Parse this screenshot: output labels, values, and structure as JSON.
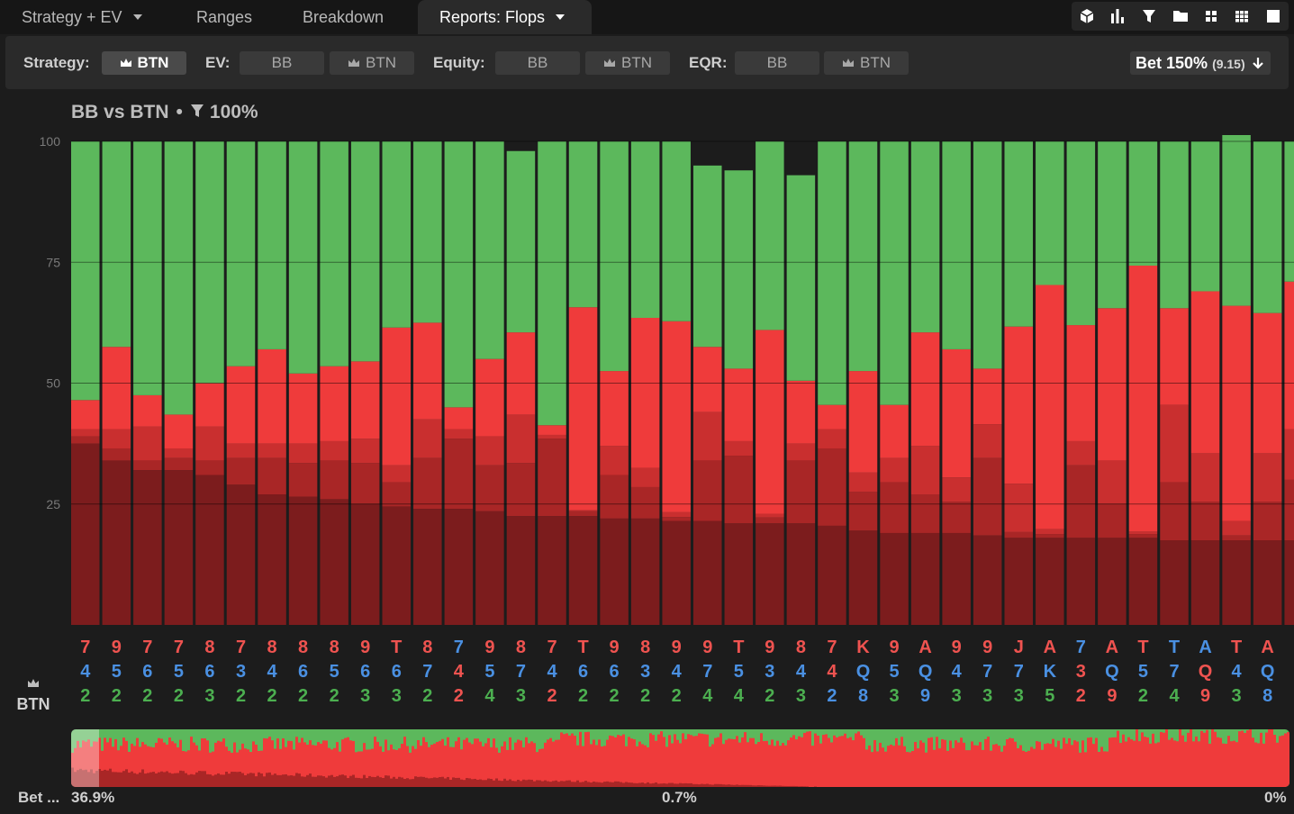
{
  "tabs": [
    {
      "label": "Strategy + EV",
      "dropdown": true,
      "active": false
    },
    {
      "label": "Ranges",
      "dropdown": false,
      "active": false
    },
    {
      "label": "Breakdown",
      "dropdown": false,
      "active": false
    },
    {
      "label": "Reports: Flops",
      "dropdown": true,
      "active": true
    }
  ],
  "tools": [
    "cube-icon",
    "bar-chart-icon",
    "filter-icon",
    "folder-icon",
    "compact-grid-icon",
    "grid-icon",
    "square-icon"
  ],
  "toolbar": {
    "strategy_label": "Strategy:",
    "strategy_btn": "BTN",
    "ev_label": "EV:",
    "ev_bb": "BB",
    "ev_btn": "BTN",
    "equity_label": "Equity:",
    "equity_bb": "BB",
    "equity_btn": "BTN",
    "eqr_label": "EQR:",
    "eqr_bb": "BB",
    "eqr_btn": "BTN",
    "bet_main": "Bet 150%",
    "bet_sub": "(9.15)"
  },
  "matchup": {
    "title": "BB vs BTN",
    "separator": "•",
    "filter": "100%"
  },
  "position_label": "BTN",
  "footer": {
    "left": "Bet ...",
    "start": "36.9%",
    "mid": "0.7%",
    "end": "0%"
  },
  "colors": {
    "check": "#5cb85c",
    "bet_small": "#ef3b3b",
    "bet_mid": "#c92f2f",
    "bet_large": "#a92626",
    "bet_max": "#7c1c1d",
    "rank_red": "#ef5350",
    "rank_blue": "#4a90e2",
    "rank_green": "#4caf50"
  },
  "chart_data": {
    "type": "bar",
    "stacked": true,
    "ylim": [
      0,
      100
    ],
    "yticks": [
      25,
      50,
      75,
      100
    ],
    "grid": true,
    "categories": [
      "742",
      "952",
      "762",
      "752",
      "863",
      "732",
      "842",
      "862",
      "852",
      "963",
      "T63",
      "872",
      "742",
      "954",
      "873",
      "742",
      "T62",
      "962",
      "832",
      "942",
      "974",
      "T54",
      "932",
      "843",
      "742",
      "KQ8",
      "953",
      "AQ9",
      "943",
      "973",
      "J73",
      "AK5",
      "732",
      "AQ9",
      "T52",
      "T74",
      "AQ9",
      "T43",
      "AQ8"
    ],
    "boards": [
      [
        "7",
        "4",
        "2"
      ],
      [
        "9",
        "5",
        "2"
      ],
      [
        "7",
        "6",
        "2"
      ],
      [
        "7",
        "5",
        "2"
      ],
      [
        "8",
        "6",
        "3"
      ],
      [
        "7",
        "3",
        "2"
      ],
      [
        "8",
        "4",
        "2"
      ],
      [
        "8",
        "6",
        "2"
      ],
      [
        "8",
        "5",
        "2"
      ],
      [
        "9",
        "6",
        "3"
      ],
      [
        "T",
        "6",
        "3"
      ],
      [
        "8",
        "7",
        "2"
      ],
      [
        "7",
        "4",
        "2"
      ],
      [
        "9",
        "5",
        "4"
      ],
      [
        "8",
        "7",
        "3"
      ],
      [
        "7",
        "4",
        "2"
      ],
      [
        "T",
        "6",
        "2"
      ],
      [
        "9",
        "6",
        "2"
      ],
      [
        "8",
        "3",
        "2"
      ],
      [
        "9",
        "4",
        "2"
      ],
      [
        "9",
        "7",
        "4"
      ],
      [
        "T",
        "5",
        "4"
      ],
      [
        "9",
        "3",
        "2"
      ],
      [
        "8",
        "4",
        "3"
      ],
      [
        "7",
        "4",
        "2"
      ],
      [
        "K",
        "Q",
        "8"
      ],
      [
        "9",
        "5",
        "3"
      ],
      [
        "A",
        "Q",
        "9"
      ],
      [
        "9",
        "4",
        "3"
      ],
      [
        "9",
        "7",
        "3"
      ],
      [
        "J",
        "7",
        "3"
      ],
      [
        "A",
        "K",
        "5"
      ],
      [
        "7",
        "3",
        "2"
      ],
      [
        "A",
        "Q",
        "9"
      ],
      [
        "T",
        "5",
        "2"
      ],
      [
        "T",
        "7",
        "4"
      ],
      [
        "A",
        "Q",
        "9"
      ],
      [
        "T",
        "4",
        "3"
      ],
      [
        "A",
        "Q",
        "8"
      ]
    ],
    "board_colors": [
      [
        "red",
        "blue",
        "green"
      ],
      [
        "red",
        "blue",
        "green"
      ],
      [
        "red",
        "blue",
        "green"
      ],
      [
        "red",
        "blue",
        "green"
      ],
      [
        "red",
        "blue",
        "green"
      ],
      [
        "red",
        "blue",
        "green"
      ],
      [
        "red",
        "blue",
        "green"
      ],
      [
        "red",
        "blue",
        "green"
      ],
      [
        "red",
        "blue",
        "green"
      ],
      [
        "red",
        "blue",
        "green"
      ],
      [
        "red",
        "blue",
        "green"
      ],
      [
        "red",
        "blue",
        "green"
      ],
      [
        "blue",
        "red",
        "red"
      ],
      [
        "red",
        "blue",
        "green"
      ],
      [
        "red",
        "blue",
        "green"
      ],
      [
        "red",
        "blue",
        "red"
      ],
      [
        "red",
        "blue",
        "green"
      ],
      [
        "red",
        "blue",
        "green"
      ],
      [
        "red",
        "blue",
        "green"
      ],
      [
        "red",
        "blue",
        "green"
      ],
      [
        "red",
        "blue",
        "green"
      ],
      [
        "red",
        "blue",
        "green"
      ],
      [
        "red",
        "blue",
        "green"
      ],
      [
        "red",
        "blue",
        "green"
      ],
      [
        "red",
        "red",
        "blue"
      ],
      [
        "red",
        "blue",
        "blue"
      ],
      [
        "red",
        "blue",
        "green"
      ],
      [
        "red",
        "blue",
        "blue"
      ],
      [
        "red",
        "blue",
        "green"
      ],
      [
        "red",
        "blue",
        "green"
      ],
      [
        "red",
        "blue",
        "green"
      ],
      [
        "red",
        "blue",
        "green"
      ],
      [
        "blue",
        "red",
        "red"
      ],
      [
        "red",
        "blue",
        "red"
      ],
      [
        "red",
        "blue",
        "green"
      ],
      [
        "blue",
        "blue",
        "green"
      ],
      [
        "blue",
        "red",
        "red"
      ],
      [
        "red",
        "blue",
        "green"
      ],
      [
        "red",
        "blue",
        "blue"
      ]
    ],
    "series": [
      {
        "color": "#7c1c1d",
        "values": [
          37.5,
          34,
          32,
          32,
          31,
          29,
          27,
          26.5,
          26,
          25,
          24.5,
          24,
          24,
          23.5,
          22.5,
          22.5,
          22.5,
          22,
          22,
          21.5,
          21.5,
          21,
          21,
          21,
          20.5,
          19.5,
          19,
          19,
          19,
          18.5,
          18,
          18,
          18,
          18,
          18,
          17.5,
          17.5,
          17.5,
          17.5
        ]
      },
      {
        "color": "#a92626",
        "values": [
          1.5,
          2.5,
          2,
          2.5,
          3,
          5.5,
          7.5,
          7,
          8,
          8.5,
          5,
          10.5,
          14.5,
          9.5,
          11,
          16,
          1,
          9,
          6.5,
          0.8,
          12.5,
          14,
          1.2,
          13,
          16,
          8,
          10.5,
          8,
          6.5,
          16,
          1.2,
          0.8,
          15,
          7,
          0.8,
          12,
          8,
          1,
          8
        ]
      },
      {
        "color": "#c92f2f",
        "values": [
          1.5,
          4,
          7,
          2,
          7,
          3,
          3,
          4,
          4,
          5,
          3.5,
          8,
          2,
          6,
          10,
          0.8,
          0.2,
          6,
          4,
          1,
          10,
          3,
          0.8,
          3.5,
          4,
          4,
          5,
          10,
          5,
          7,
          10,
          1,
          5,
          9,
          0.5,
          16,
          10,
          3,
          10
        ]
      },
      {
        "color": "#ef3b3b",
        "values": [
          6,
          17,
          6.5,
          7,
          9,
          16,
          19.5,
          14.5,
          15.5,
          16,
          28.5,
          20,
          4.5,
          16,
          17,
          2,
          42,
          15.5,
          31,
          39.5,
          13.5,
          15,
          38,
          13,
          5,
          21,
          11,
          23.5,
          26.5,
          11.5,
          32.5,
          50.5,
          24,
          31.5,
          55,
          20,
          33.5,
          44.5,
          29
        ]
      },
      {
        "color": "#5cb85c",
        "values": [
          53.5,
          42.5,
          52.5,
          56.5,
          50,
          46.5,
          43,
          48,
          46.5,
          45.5,
          38.5,
          37.5,
          55,
          45,
          37.5,
          58.7,
          34.3,
          47.5,
          36.5,
          37.2,
          37.5,
          41,
          39,
          42.5,
          54.5,
          47.5,
          54.5,
          39.5,
          43,
          47,
          38.3,
          29.7,
          38,
          34.5,
          25.7,
          34.5,
          31,
          37.5,
          35.5
        ]
      }
    ],
    "partial_bar": {
      "values": [
        17.5,
        12.5,
        10.5,
        30.5,
        29
      ]
    }
  },
  "overview_data": {
    "left_value": "36.9%",
    "mid_value": "0.7%",
    "right_value": "0%"
  }
}
